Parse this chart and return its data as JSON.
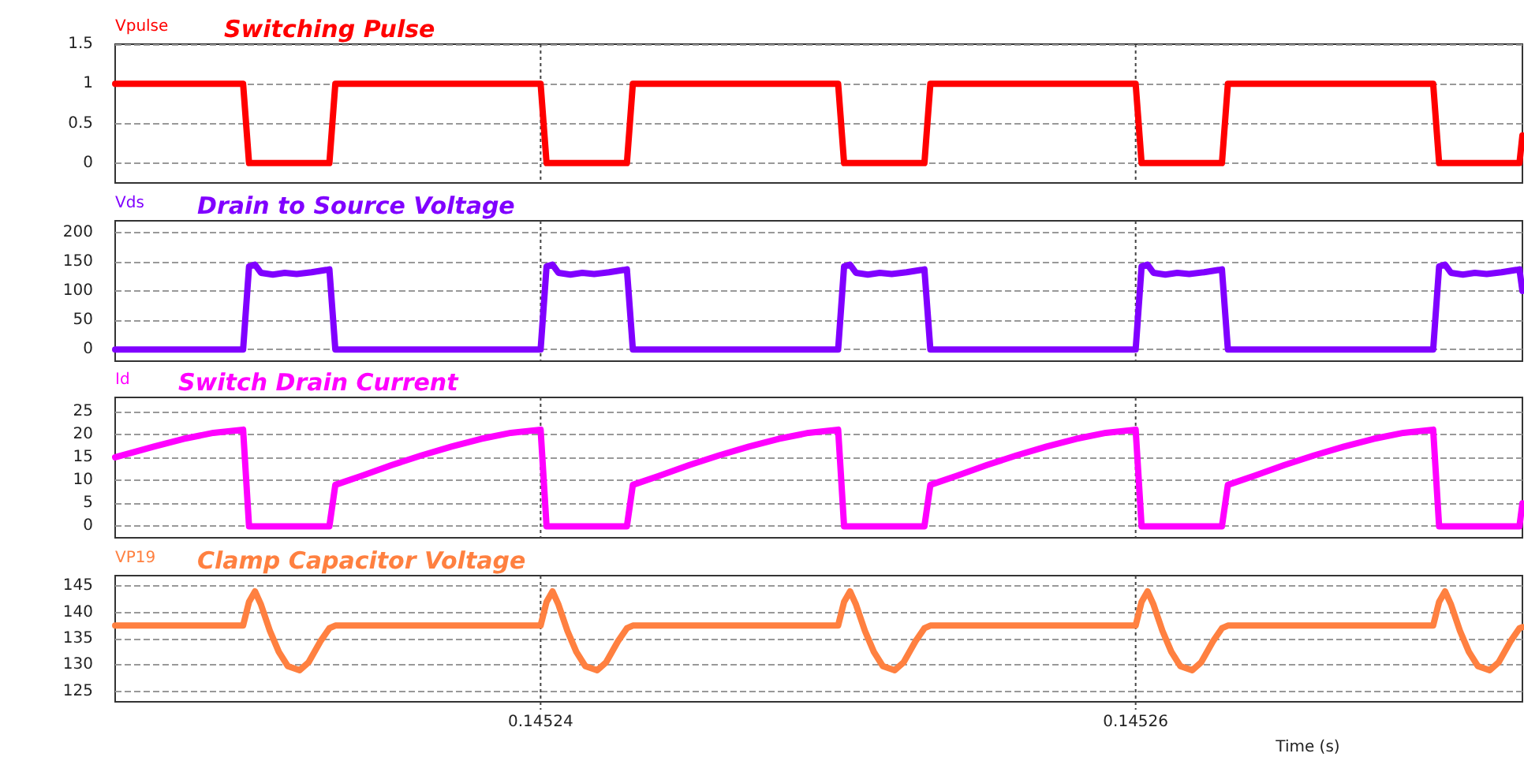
{
  "chart_data": [
    {
      "type": "line",
      "title": "Switching Pulse",
      "ylabel": "Vpulse",
      "xlim": [
        0.1452257,
        0.145273
      ],
      "ylim": [
        -0.25,
        1.5
      ],
      "yticks": [
        0,
        0.5,
        1,
        1.5
      ],
      "grid": true,
      "tick_labels": "y",
      "marker": "none",
      "line_style": "solid",
      "series": [
        {
          "color": "#ff0000",
          "x": [
            0.1452257,
            0.14523,
            0.1452302,
            0.1452329,
            0.1452331,
            0.14524,
            0.1452402,
            0.1452429,
            0.1452431,
            0.14525,
            0.1452502,
            0.1452529,
            0.1452531,
            0.14526,
            0.1452602,
            0.1452629,
            0.1452631,
            0.14527,
            0.1452702,
            0.1452729,
            0.145273
          ],
          "values": [
            1,
            1,
            0,
            0,
            1,
            1,
            0,
            0,
            1,
            1,
            0,
            0,
            1,
            1,
            0,
            0,
            1,
            1,
            0,
            0,
            0.35
          ]
        }
      ]
    },
    {
      "type": "line",
      "title": "Drain to Source Voltage",
      "ylabel": "Vds",
      "xlim": [
        0.1452257,
        0.145273
      ],
      "ylim": [
        -20,
        220
      ],
      "yticks": [
        0,
        50,
        100,
        150,
        200
      ],
      "grid": true,
      "tick_labels": "y",
      "marker": "none",
      "line_style": "solid",
      "series": [
        {
          "color": "#8000ff",
          "x": [
            0.1452257,
            0.14523,
            0.1452302,
            0.1452304,
            0.1452306,
            0.145231,
            0.1452314,
            0.1452318,
            0.1452323,
            0.1452328,
            0.1452329,
            0.1452331,
            0.14524,
            0.1452402,
            0.1452404,
            0.1452406,
            0.145241,
            0.1452414,
            0.1452418,
            0.1452423,
            0.1452428,
            0.1452429,
            0.1452431,
            0.14525,
            0.1452502,
            0.1452504,
            0.1452506,
            0.145251,
            0.1452514,
            0.1452518,
            0.1452523,
            0.1452528,
            0.1452529,
            0.1452531,
            0.14526,
            0.1452602,
            0.1452604,
            0.1452606,
            0.145261,
            0.1452614,
            0.1452618,
            0.1452623,
            0.1452628,
            0.1452629,
            0.1452631,
            0.14527,
            0.1452702,
            0.1452704,
            0.1452706,
            0.145271,
            0.1452714,
            0.1452718,
            0.1452723,
            0.1452728,
            0.1452729,
            0.145273
          ],
          "values": [
            0,
            0,
            142,
            145,
            131,
            128,
            131,
            129,
            132,
            136,
            137,
            0,
            0,
            142,
            145,
            131,
            128,
            131,
            129,
            132,
            136,
            137,
            0,
            0,
            142,
            145,
            131,
            128,
            131,
            129,
            132,
            136,
            137,
            0,
            0,
            142,
            145,
            131,
            128,
            131,
            129,
            132,
            136,
            137,
            0,
            0,
            142,
            145,
            131,
            128,
            131,
            129,
            132,
            136,
            137,
            100
          ]
        }
      ]
    },
    {
      "type": "line",
      "title": "Switch Drain Current",
      "ylabel": "Id",
      "xlim": [
        0.1452257,
        0.145273
      ],
      "ylim": [
        -2.5,
        28
      ],
      "yticks": [
        0,
        5,
        10,
        15,
        20,
        25
      ],
      "grid": true,
      "tick_labels": "y",
      "marker": "none",
      "line_style": "solid",
      "series": [
        {
          "color": "#ff00ff",
          "x": [
            0.1452257,
            0.145227,
            0.145228,
            0.145229,
            0.14523,
            0.1452302,
            0.1452329,
            0.1452331,
            0.145234,
            0.145235,
            0.145236,
            0.145237,
            0.145238,
            0.145239,
            0.14524,
            0.1452402,
            0.1452429,
            0.1452431,
            0.145244,
            0.145245,
            0.145246,
            0.145247,
            0.145248,
            0.145249,
            0.14525,
            0.1452502,
            0.1452529,
            0.1452531,
            0.145254,
            0.145255,
            0.145256,
            0.145257,
            0.145258,
            0.145259,
            0.14526,
            0.1452602,
            0.1452629,
            0.1452631,
            0.145264,
            0.145265,
            0.145266,
            0.145267,
            0.145268,
            0.145269,
            0.14527,
            0.1452702,
            0.1452729,
            0.145273
          ],
          "values": [
            15,
            17.3,
            19,
            20.3,
            21,
            0,
            0,
            9,
            11,
            13.3,
            15.4,
            17.3,
            19,
            20.3,
            21,
            0,
            0,
            9,
            11,
            13.3,
            15.4,
            17.3,
            19,
            20.3,
            21,
            0,
            0,
            9,
            11,
            13.3,
            15.4,
            17.3,
            19,
            20.3,
            21,
            0,
            0,
            9,
            11,
            13.3,
            15.4,
            17.3,
            19,
            20.3,
            21,
            0,
            0,
            5
          ]
        }
      ]
    },
    {
      "type": "line",
      "title": "Clamp Capacitor Voltage",
      "ylabel": "VP19",
      "xlabel": "Time (s)",
      "xlim": [
        0.1452257,
        0.145273
      ],
      "xticks": [
        0.14524,
        0.14526
      ],
      "ylim": [
        123,
        147
      ],
      "yticks": [
        125,
        130,
        135,
        140,
        145
      ],
      "grid": true,
      "marker": "none",
      "line_style": "solid",
      "series": [
        {
          "color": "#ff8040",
          "x": [
            0.1452257,
            0.14523,
            0.1452302,
            0.1452304,
            0.1452306,
            0.1452309,
            0.1452312,
            0.1452315,
            0.1452319,
            0.1452322,
            0.1452326,
            0.1452329,
            0.1452331,
            0.14524,
            0.1452402,
            0.1452404,
            0.1452406,
            0.1452409,
            0.1452412,
            0.1452415,
            0.1452419,
            0.1452422,
            0.1452426,
            0.1452429,
            0.1452431,
            0.14525,
            0.1452502,
            0.1452504,
            0.1452506,
            0.1452509,
            0.1452512,
            0.1452515,
            0.1452519,
            0.1452522,
            0.1452526,
            0.1452529,
            0.1452531,
            0.14526,
            0.1452602,
            0.1452604,
            0.1452606,
            0.1452609,
            0.1452612,
            0.1452615,
            0.1452619,
            0.1452622,
            0.1452626,
            0.1452629,
            0.1452631,
            0.14527,
            0.1452702,
            0.1452704,
            0.1452706,
            0.1452709,
            0.1452712,
            0.1452715,
            0.1452719,
            0.1452722,
            0.1452726,
            0.1452729,
            0.145273
          ],
          "values": [
            137.5,
            137.5,
            142,
            144,
            141.5,
            136.5,
            132.5,
            129.8,
            129,
            130.5,
            134.5,
            137,
            137.5,
            137.5,
            142,
            144,
            141.5,
            136.5,
            132.5,
            129.8,
            129,
            130.5,
            134.5,
            137,
            137.5,
            137.5,
            142,
            144,
            141.5,
            136.5,
            132.5,
            129.8,
            129,
            130.5,
            134.5,
            137,
            137.5,
            137.5,
            142,
            144,
            141.5,
            136.5,
            132.5,
            129.8,
            129,
            130.5,
            134.5,
            137,
            137.5,
            137.5,
            142,
            144,
            141.5,
            136.5,
            132.5,
            129.8,
            129,
            130.5,
            134.5,
            137,
            137.2
          ]
        }
      ]
    }
  ]
}
